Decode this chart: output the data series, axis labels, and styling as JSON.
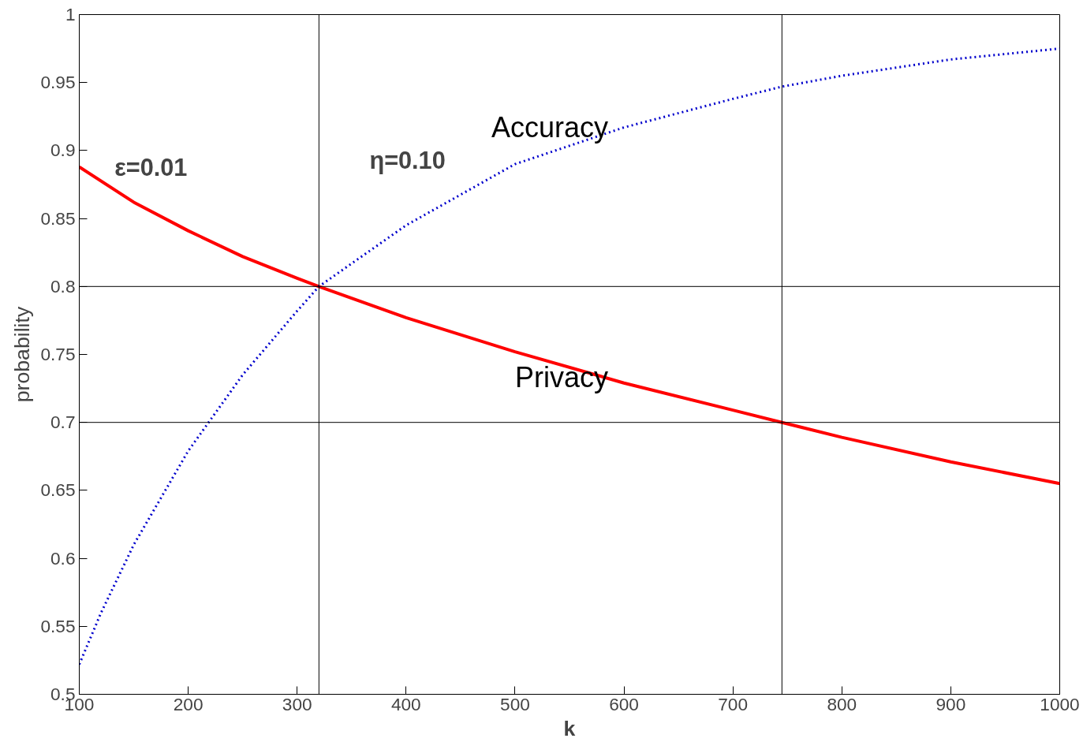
{
  "chart_data": {
    "type": "line",
    "xlabel": "k",
    "ylabel": "probability",
    "xlim": [
      100,
      1000
    ],
    "ylim": [
      0.5,
      1
    ],
    "xticks": [
      100,
      200,
      300,
      400,
      500,
      600,
      700,
      800,
      900,
      1000
    ],
    "yticks": [
      0.5,
      0.55,
      0.6,
      0.65,
      0.7,
      0.75,
      0.8,
      0.85,
      0.9,
      0.95,
      1
    ],
    "grid": false,
    "series": [
      {
        "name": "Privacy",
        "color": "#ff0000",
        "line_style": "solid",
        "x": [
          100,
          150,
          200,
          250,
          300,
          320,
          400,
          500,
          600,
          700,
          745,
          800,
          900,
          1000
        ],
        "values": [
          0.888,
          0.862,
          0.841,
          0.822,
          0.806,
          0.8,
          0.777,
          0.752,
          0.729,
          0.709,
          0.7,
          0.689,
          0.671,
          0.655
        ]
      },
      {
        "name": "Accuracy",
        "color": "#0000cc",
        "line_style": "dotted",
        "x": [
          100,
          120,
          150,
          200,
          250,
          300,
          320,
          400,
          500,
          600,
          700,
          745,
          800,
          900,
          1000
        ],
        "values": [
          0.522,
          0.56,
          0.61,
          0.679,
          0.735,
          0.782,
          0.8,
          0.845,
          0.89,
          0.917,
          0.938,
          0.947,
          0.955,
          0.967,
          0.975
        ]
      }
    ],
    "ref_lines": [
      {
        "axis": "x",
        "value": 320,
        "color": "#000000"
      },
      {
        "axis": "x",
        "value": 745,
        "color": "#000000"
      },
      {
        "axis": "y",
        "value": 0.8,
        "color": "#000000"
      },
      {
        "axis": "y",
        "value": 0.7,
        "color": "#000000"
      }
    ],
    "annotations": [
      "ε=0.01",
      "η=0.10"
    ]
  }
}
